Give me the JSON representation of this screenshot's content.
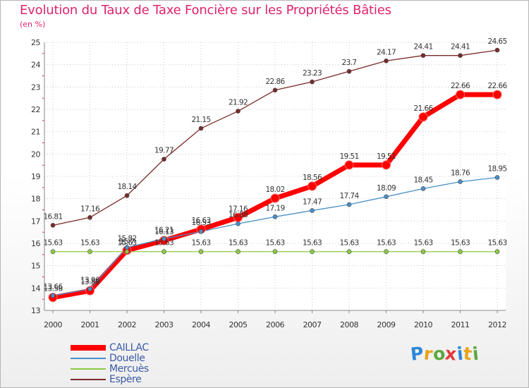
{
  "header": {
    "title": "Evolution du Taux de Taxe Foncière sur les Propriétés Bâties",
    "subtitle": "(en %)"
  },
  "logo": {
    "letters": [
      "P",
      "r",
      "o",
      "x",
      "i",
      "t",
      "i"
    ],
    "colors": [
      "#2e86d6",
      "#e8a317",
      "#5aa83c",
      "#e23a3a",
      "#2e86d6",
      "#e8a317",
      "#5aa83c"
    ]
  },
  "chart_data": {
    "type": "line",
    "title": "Evolution du Taux de Taxe Foncière sur les Propriétés Bâties",
    "ylabel": "(en %)",
    "xlabel": "",
    "x": [
      "2000",
      "2001",
      "2002",
      "2003",
      "2004",
      "2005",
      "2006",
      "2007",
      "2008",
      "2009",
      "2010",
      "2011",
      "2012"
    ],
    "ylim": [
      13,
      25
    ],
    "yticks": [
      "13",
      "14",
      "15",
      "16",
      "17",
      "18",
      "19",
      "20",
      "21",
      "22",
      "23",
      "24",
      "25"
    ],
    "grid": "dotted",
    "legend": "bottom-left",
    "series": [
      {
        "name": "CAILLAC",
        "color": "#ff0000",
        "values": [
          13.58,
          13.88,
          15.69,
          16.13,
          16.63,
          17.16,
          18.02,
          18.56,
          19.51,
          19.51,
          21.66,
          22.66,
          22.66
        ],
        "labels": [
          "13.58",
          "13.88",
          "15.7",
          "16.13",
          "16.63",
          "17.16",
          "18.02",
          "18.56",
          "19.51",
          "19.51",
          "21.66",
          "22.66",
          "22.66"
        ]
      },
      {
        "name": "Douelle",
        "color": "#4a90c8",
        "values": [
          13.66,
          13.96,
          15.82,
          16.21,
          16.53,
          16.88,
          17.19,
          17.47,
          17.74,
          18.09,
          18.45,
          18.76,
          18.95
        ],
        "labels": [
          "13.66",
          "13.96",
          "15.82",
          "16.21",
          "16.53",
          "16.88",
          "17.19",
          "17.47",
          "17.74",
          "18.09",
          "18.45",
          "18.76",
          "18.95"
        ]
      },
      {
        "name": "Mercuès",
        "color": "#8ccc44",
        "values": [
          15.63,
          15.63,
          15.63,
          15.63,
          15.63,
          15.63,
          15.63,
          15.63,
          15.63,
          15.63,
          15.63,
          15.63,
          15.63
        ],
        "labels": [
          "15.63",
          "15.63",
          "15.63",
          "15.63",
          "15.63",
          "15.63",
          "15.63",
          "15.63",
          "15.63",
          "15.63",
          "15.63",
          "15.63",
          "15.63"
        ]
      },
      {
        "name": "Espère",
        "color": "#7a2a2a",
        "values": [
          16.81,
          17.16,
          18.14,
          19.77,
          21.15,
          21.92,
          22.86,
          23.23,
          23.7,
          24.17,
          24.41,
          24.41,
          24.65
        ],
        "labels": [
          "16.81",
          "17.16",
          "18.14",
          "19.77",
          "21.15",
          "21.92",
          "22.86",
          "23.23",
          "23.7",
          "24.17",
          "24.41",
          "24.41",
          "24.65"
        ]
      }
    ]
  }
}
